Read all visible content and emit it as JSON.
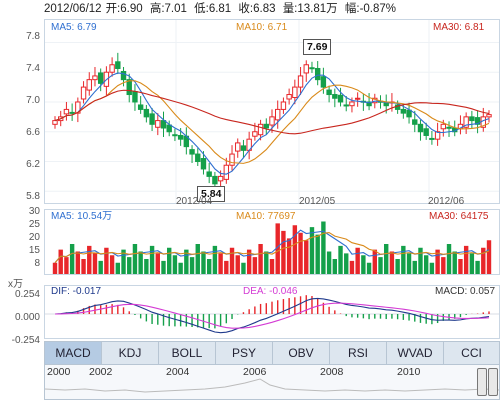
{
  "header": {
    "date": "2012/06/12",
    "open_label": "开:6.90",
    "high_label": "高:7.01",
    "low_label": "低:6.81",
    "close_label": "收:6.83",
    "volume_label": "量:13.81万",
    "change_label": "幅:-0.87%"
  },
  "price_panel": {
    "ma5": "MA5: 6.79",
    "ma10": "MA10: 6.71",
    "ma30": "MA30: 6.81",
    "y_ticks": [
      "7.8",
      "7.4",
      "7.0",
      "6.6",
      "6.2",
      "5.8"
    ],
    "x_ticks": [
      "2012/04",
      "2012/05",
      "2012/06"
    ],
    "high_callout": "7.69",
    "low_callout": "5.84"
  },
  "volume_panel": {
    "ma5": "MA5: 10.54万",
    "ma10": "MA10: 77697",
    "ma30": "MA30: 64175",
    "y_ticks": [
      "30",
      "25",
      "20",
      "15",
      "8"
    ],
    "unit": "x万"
  },
  "macd_panel": {
    "dif": "DIF: -0.017",
    "dea": "DEA: -0.046",
    "macd": "MACD: 0.057",
    "y_ticks": [
      "0.254",
      "0.000",
      "-0.254"
    ]
  },
  "tabs": [
    "MACD",
    "KDJ",
    "BOLL",
    "PSY",
    "OBV",
    "RSI",
    "WVAD",
    "CCI"
  ],
  "active_tab": "MACD",
  "navigator": {
    "years": [
      "2000",
      "2002",
      "2004",
      "2006",
      "2008",
      "2010"
    ]
  },
  "colors": {
    "up": "#e8262a",
    "down": "#14a04a",
    "ma5": "#2f6fd0",
    "ma10": "#d98a1a",
    "ma30": "#c8261e",
    "dif": "#1f3a8c",
    "dea": "#d43bd4"
  }
}
